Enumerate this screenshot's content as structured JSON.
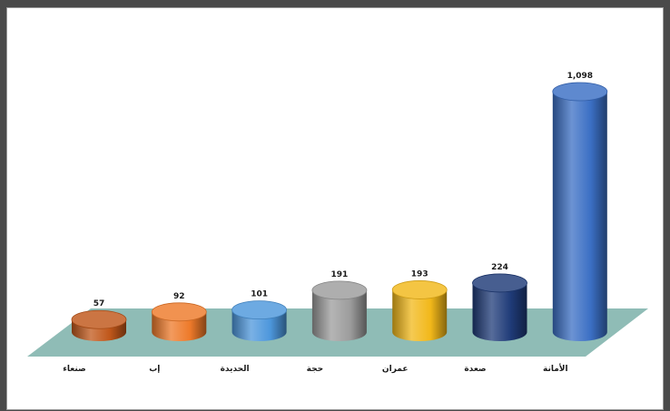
{
  "chart_data": {
    "type": "bar",
    "style": "3d-cylinder",
    "categories": [
      "صنعاء",
      "إب",
      "الحديدة",
      "حجة",
      "عمران",
      "صعدة",
      "الأمانة"
    ],
    "values": [
      57,
      92,
      101,
      191,
      193,
      224,
      1098
    ],
    "value_labels": [
      "57",
      "92",
      "101",
      "191",
      "193",
      "224",
      "1,098"
    ],
    "colors": [
      "#c0571a",
      "#ee7a2a",
      "#4d97dc",
      "#9c9c9c",
      "#f2b81a",
      "#1f3b78",
      "#3b6fc4"
    ],
    "floor_color": "#8fbcb6",
    "title": "",
    "xlabel": "",
    "ylabel": "",
    "grid": false,
    "legend": "none"
  }
}
